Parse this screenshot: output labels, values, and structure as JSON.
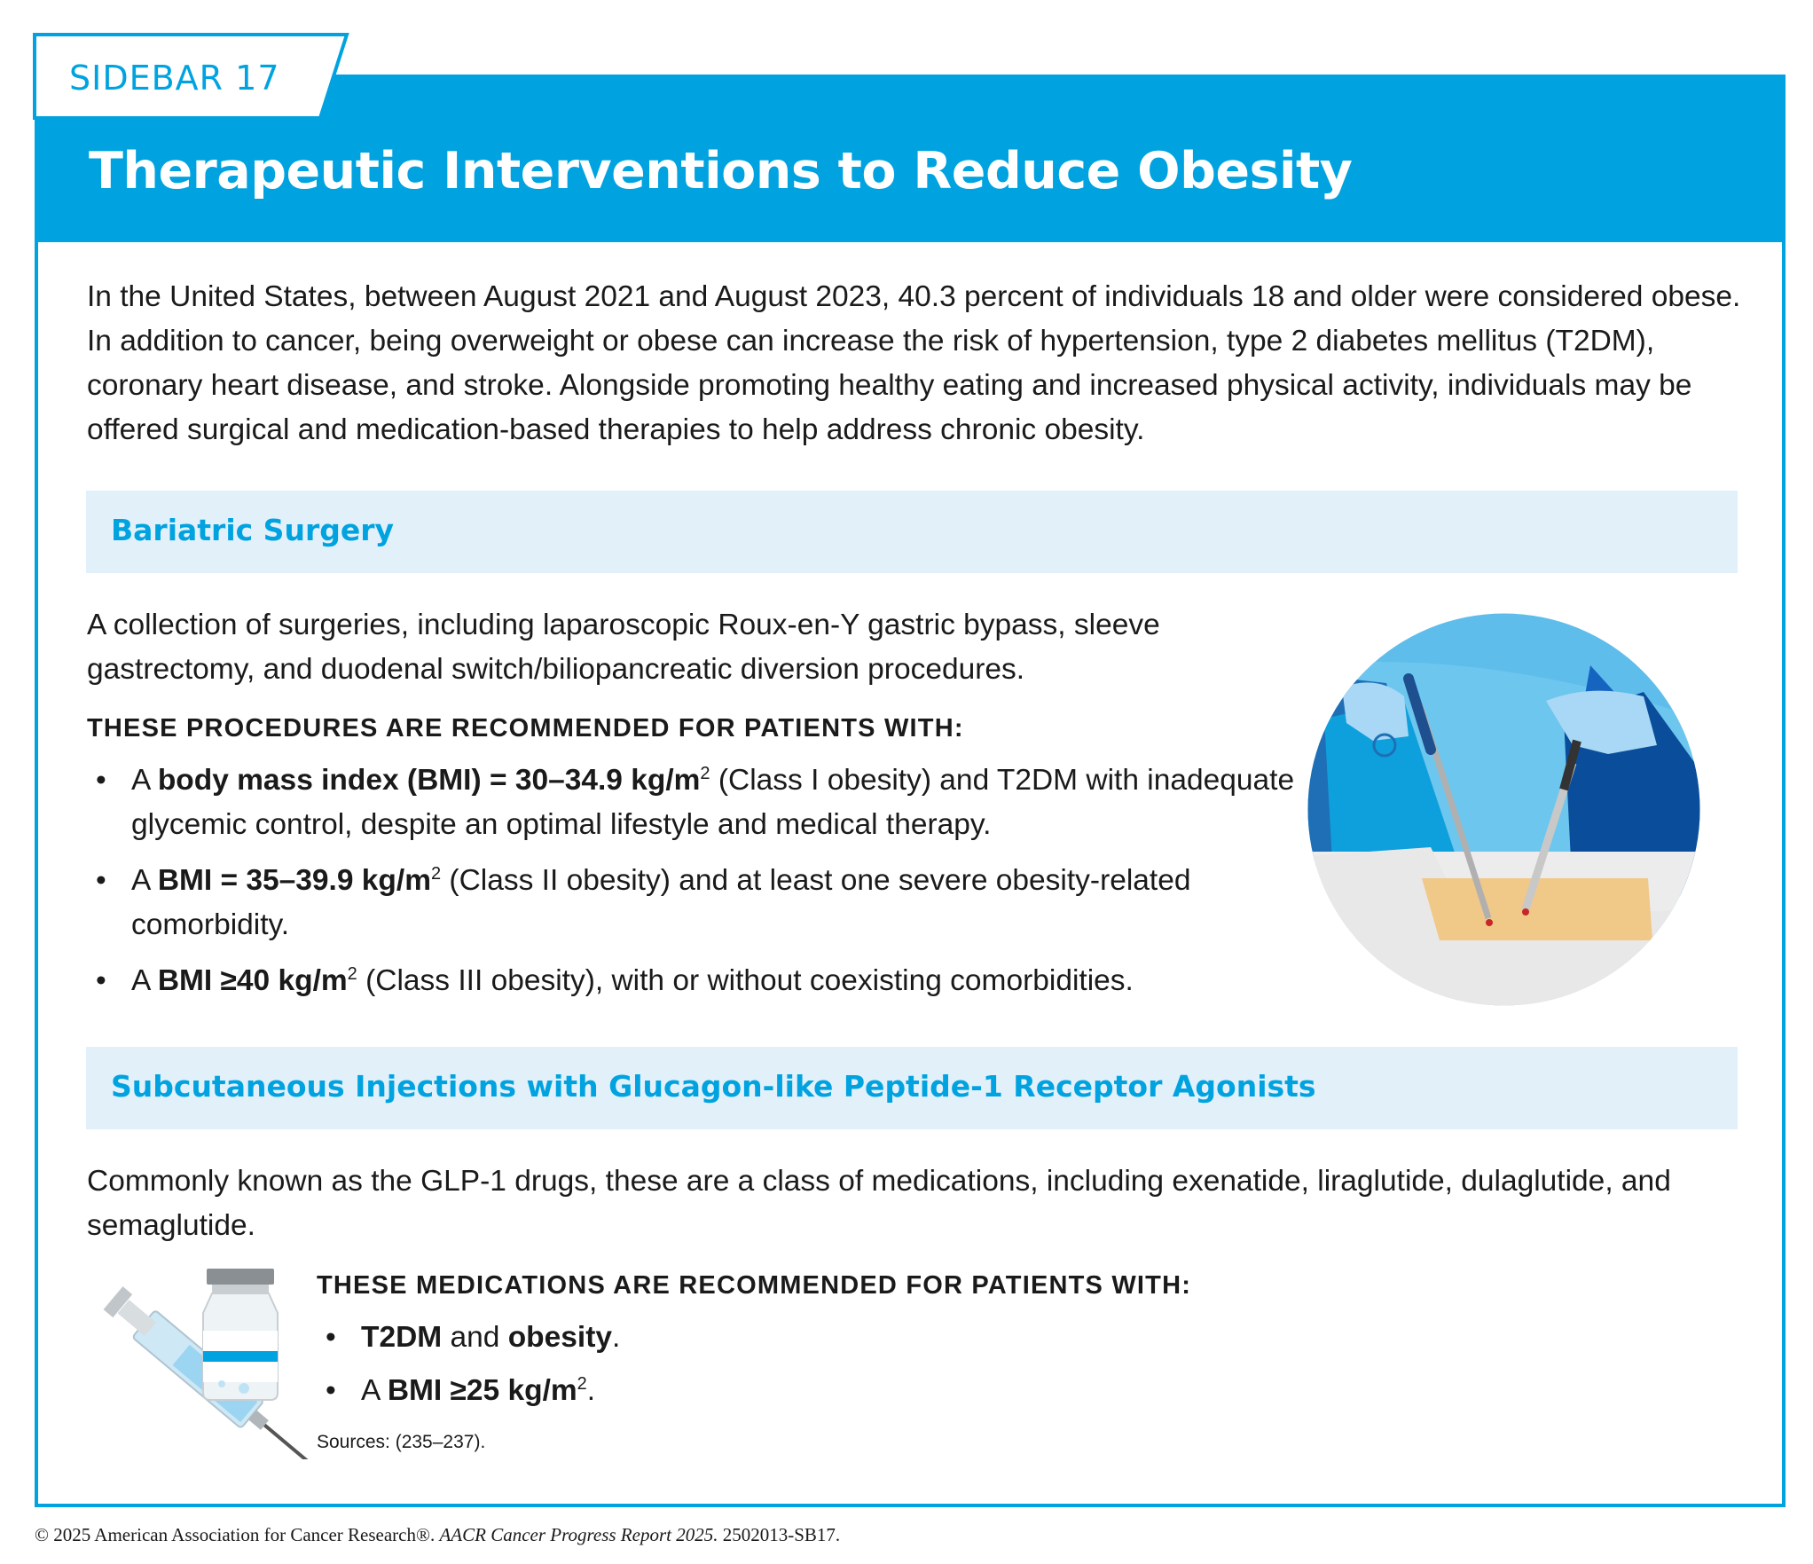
{
  "header": {
    "tab_label": "SIDEBAR 17",
    "title": "Therapeutic Interventions to Reduce Obesity"
  },
  "intro": "In the United States, between August 2021 and August 2023, 40.3 percent of individuals 18 and older were considered obese. In addition to cancer, being overweight or obese can increase the risk of hypertension, type 2 diabetes mellitus (T2DM), coronary heart disease, and stroke. Alongside promoting healthy eating and increased physical activity, individuals may be offered surgical and medication-based therapies to help address chronic obesity.",
  "bariatric": {
    "title": "Bariatric Surgery",
    "description": "A collection of surgeries, including laparoscopic Roux-en-Y gastric bypass, sleeve gastrectomy, and duodenal switch/biliopancreatic diversion procedures.",
    "criteria_heading": "THESE PROCEDURES ARE RECOMMENDED FOR PATIENTS WITH:",
    "bullets": [
      {
        "pre": "A ",
        "bold": "body mass index (BMI) = 30–34.9 kg/m",
        "sup": "2",
        "post": " (Class I obesity) and T2DM with inadequate glycemic control, despite an optimal lifestyle and medical therapy."
      },
      {
        "pre": "A ",
        "bold": "BMI = 35–39.9 kg/m",
        "sup": "2",
        "post": " (Class II obesity) and at least one severe obesity-related comorbidity."
      },
      {
        "pre": "A ",
        "bold": "BMI ≥40 kg/m",
        "sup": "2",
        "post": " (Class III obesity), with or without coexisting comorbidities."
      }
    ]
  },
  "glp1": {
    "title": "Subcutaneous Injections with Glucagon-like Peptide-1 Receptor Agonists",
    "description": "Commonly known as the GLP-1 drugs, these are a class of medications, including exenatide, liraglutide, dulaglutide, and semaglutide.",
    "criteria_heading": "THESE MEDICATIONS ARE RECOMMENDED FOR PATIENTS WITH:",
    "bullet1": {
      "bold_a": "T2DM",
      "mid": " and ",
      "bold_b": "obesity",
      "end": "."
    },
    "bullet2": {
      "pre": "A ",
      "bold": "BMI ≥25 kg/m",
      "sup": "2",
      "end": "."
    }
  },
  "sources": "Sources: (235–237).",
  "bullet_char": "•",
  "footer": {
    "pre": "© 2025 American Association for Cancer Research®. ",
    "italic": "AACR Cancer Progress Report 2025.",
    "post": " 2502013-SB17."
  },
  "colors": {
    "accent": "#00a3e0",
    "section_bg": "#e2f0fa",
    "text": "#1a1a1a"
  }
}
